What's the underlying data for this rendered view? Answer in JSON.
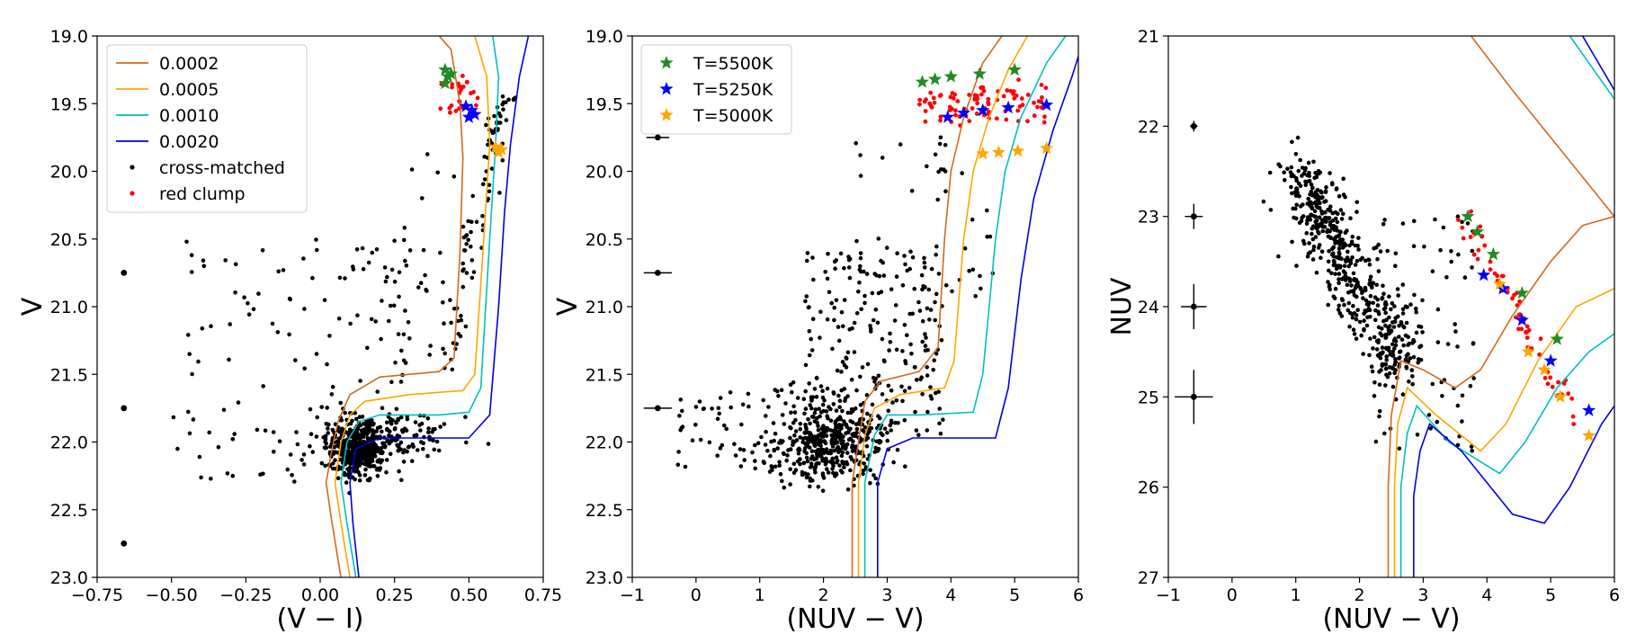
{
  "chart_data": [
    {
      "type": "scatter",
      "xlabel": "(V − I)",
      "ylabel": "V",
      "xlim": [
        -0.75,
        0.75
      ],
      "ylim": [
        23.0,
        19.0
      ],
      "y_inverted": true,
      "grid": false,
      "legend_position": "top-left",
      "xticks": [
        "−0.75",
        "−0.50",
        "−0.25",
        "0.00",
        "0.25",
        "0.50",
        "0.75"
      ],
      "yticks": [
        "19.0",
        "19.5",
        "20.0",
        "20.5",
        "21.0",
        "21.5",
        "22.0",
        "22.5",
        "23.0"
      ],
      "isochrones": [
        {
          "name": "0.0002",
          "color": "#d2691e",
          "points": [
            [
              0.07,
              23.0
            ],
            [
              0.04,
              22.6
            ],
            [
              0.02,
              22.3
            ],
            [
              0.04,
              22.05
            ],
            [
              0.06,
              21.85
            ],
            [
              0.1,
              21.65
            ],
            [
              0.2,
              21.52
            ],
            [
              0.4,
              21.48
            ],
            [
              0.45,
              21.38
            ],
            [
              0.47,
              20.6
            ],
            [
              0.48,
              19.9
            ],
            [
              0.47,
              19.5
            ],
            [
              0.44,
              19.1
            ],
            [
              0.4,
              19.0
            ]
          ]
        },
        {
          "name": "0.0005",
          "color": "#ffa500",
          "points": [
            [
              0.1,
              23.0
            ],
            [
              0.07,
              22.6
            ],
            [
              0.05,
              22.3
            ],
            [
              0.07,
              22.0
            ],
            [
              0.1,
              21.8
            ],
            [
              0.15,
              21.7
            ],
            [
              0.3,
              21.65
            ],
            [
              0.48,
              21.62
            ],
            [
              0.52,
              21.5
            ],
            [
              0.55,
              20.5
            ],
            [
              0.57,
              19.8
            ],
            [
              0.56,
              19.3
            ],
            [
              0.52,
              19.0
            ]
          ]
        },
        {
          "name": "0.0010",
          "color": "#00bfbf",
          "points": [
            [
              0.12,
              23.0
            ],
            [
              0.09,
              22.6
            ],
            [
              0.07,
              22.3
            ],
            [
              0.09,
              22.0
            ],
            [
              0.13,
              21.85
            ],
            [
              0.2,
              21.8
            ],
            [
              0.4,
              21.8
            ],
            [
              0.5,
              21.78
            ],
            [
              0.54,
              21.6
            ],
            [
              0.57,
              20.5
            ],
            [
              0.59,
              19.8
            ],
            [
              0.6,
              19.3
            ],
            [
              0.58,
              19.0
            ]
          ]
        },
        {
          "name": "0.0020",
          "color": "#0000dd",
          "points": [
            [
              0.13,
              23.0
            ],
            [
              0.11,
              22.6
            ],
            [
              0.1,
              22.3
            ],
            [
              0.12,
              22.05
            ],
            [
              0.2,
              21.97
            ],
            [
              0.5,
              21.97
            ],
            [
              0.57,
              21.8
            ],
            [
              0.6,
              21.0
            ],
            [
              0.62,
              20.3
            ],
            [
              0.64,
              19.8
            ],
            [
              0.67,
              19.3
            ],
            [
              0.7,
              19.0
            ]
          ]
        }
      ],
      "legend": [
        "0.0002",
        "0.0005",
        "0.0010",
        "0.0020",
        "cross-matched",
        "red clump"
      ],
      "cross_matched_color": "#000000",
      "red_clump_color": "#ff0000",
      "error_bars": [
        {
          "x": -0.66,
          "y": 20.75,
          "xerr": 0.005,
          "yerr": 0.005
        },
        {
          "x": -0.66,
          "y": 21.75,
          "xerr": 0.005,
          "yerr": 0.005
        },
        {
          "x": -0.66,
          "y": 22.75,
          "xerr": 0.005,
          "yerr": 0.005
        }
      ],
      "star_markers": [
        {
          "name": "T=5500K",
          "color": "#228b22",
          "points": [
            [
              0.42,
              19.25
            ],
            [
              0.43,
              19.3
            ],
            [
              0.42,
              19.35
            ],
            [
              0.44,
              19.28
            ]
          ]
        },
        {
          "name": "T=5250K",
          "color": "#0000ff",
          "points": [
            [
              0.49,
              19.52
            ],
            [
              0.51,
              19.55
            ],
            [
              0.5,
              19.6
            ],
            [
              0.52,
              19.58
            ]
          ]
        },
        {
          "name": "T=5000K",
          "color": "#ffa500",
          "points": [
            [
              0.59,
              19.82
            ],
            [
              0.6,
              19.86
            ],
            [
              0.61,
              19.84
            ]
          ]
        }
      ]
    },
    {
      "type": "scatter",
      "xlabel": "(NUV − V)",
      "ylabel": "V",
      "xlim": [
        -1,
        6
      ],
      "ylim": [
        23.0,
        19.0
      ],
      "y_inverted": true,
      "grid": false,
      "legend_position": "top-left",
      "xticks": [
        "−1",
        "0",
        "1",
        "2",
        "3",
        "4",
        "5",
        "6"
      ],
      "yticks": [
        "19.0",
        "19.5",
        "20.0",
        "20.5",
        "21.0",
        "21.5",
        "22.0",
        "22.5",
        "23.0"
      ],
      "legend": [
        "T=5500K",
        "T=5250K",
        "T=5000K"
      ],
      "isochrones": [
        {
          "name": "0.0002",
          "color": "#d2691e",
          "points": [
            [
              2.45,
              23.0
            ],
            [
              2.45,
              22.3
            ],
            [
              2.55,
              22.0
            ],
            [
              2.65,
              21.7
            ],
            [
              2.9,
              21.55
            ],
            [
              3.5,
              21.48
            ],
            [
              3.8,
              21.3
            ],
            [
              3.9,
              20.5
            ],
            [
              4.0,
              20.0
            ],
            [
              4.2,
              19.6
            ],
            [
              4.5,
              19.2
            ],
            [
              4.8,
              19.0
            ]
          ]
        },
        {
          "name": "0.0005",
          "color": "#ffa500",
          "points": [
            [
              2.55,
              23.0
            ],
            [
              2.55,
              22.3
            ],
            [
              2.65,
              21.95
            ],
            [
              2.8,
              21.75
            ],
            [
              3.2,
              21.65
            ],
            [
              3.9,
              21.6
            ],
            [
              4.05,
              21.4
            ],
            [
              4.2,
              20.5
            ],
            [
              4.35,
              20.0
            ],
            [
              4.6,
              19.6
            ],
            [
              4.9,
              19.25
            ],
            [
              5.2,
              19.0
            ]
          ]
        },
        {
          "name": "0.0010",
          "color": "#00bfbf",
          "points": [
            [
              2.65,
              23.0
            ],
            [
              2.65,
              22.3
            ],
            [
              2.8,
              21.95
            ],
            [
              3.0,
              21.8
            ],
            [
              3.5,
              21.8
            ],
            [
              4.35,
              21.78
            ],
            [
              4.5,
              21.5
            ],
            [
              4.7,
              20.5
            ],
            [
              4.85,
              20.0
            ],
            [
              5.1,
              19.6
            ],
            [
              5.5,
              19.2
            ],
            [
              5.8,
              19.0
            ]
          ]
        },
        {
          "name": "0.0020",
          "color": "#0000dd",
          "points": [
            [
              2.85,
              23.0
            ],
            [
              2.85,
              22.3
            ],
            [
              3.0,
              22.05
            ],
            [
              3.4,
              21.97
            ],
            [
              4.7,
              21.97
            ],
            [
              4.9,
              21.6
            ],
            [
              5.1,
              20.8
            ],
            [
              5.3,
              20.2
            ],
            [
              5.6,
              19.7
            ],
            [
              5.9,
              19.3
            ],
            [
              6.0,
              19.15
            ]
          ]
        }
      ],
      "error_bars": [
        {
          "x": -0.6,
          "y": 19.75,
          "xerr": 0.18,
          "yerr": 0.0
        },
        {
          "x": -0.6,
          "y": 20.75,
          "xerr": 0.22,
          "yerr": 0.0
        },
        {
          "x": -0.6,
          "y": 21.75,
          "xerr": 0.22,
          "yerr": 0.0
        }
      ],
      "star_markers": [
        {
          "name": "T=5500K",
          "color": "#228b22",
          "points": [
            [
              3.55,
              19.34
            ],
            [
              3.75,
              19.32
            ],
            [
              4.0,
              19.3
            ],
            [
              4.45,
              19.28
            ],
            [
              5.0,
              19.25
            ]
          ]
        },
        {
          "name": "T=5250K",
          "color": "#0000ff",
          "points": [
            [
              3.95,
              19.6
            ],
            [
              4.2,
              19.57
            ],
            [
              4.5,
              19.55
            ],
            [
              4.9,
              19.53
            ],
            [
              5.5,
              19.51
            ]
          ]
        },
        {
          "name": "T=5000K",
          "color": "#ffa500",
          "points": [
            [
              4.5,
              19.87
            ],
            [
              4.75,
              19.86
            ],
            [
              5.05,
              19.85
            ],
            [
              5.5,
              19.83
            ]
          ]
        }
      ]
    },
    {
      "type": "scatter",
      "xlabel": "(NUV − V)",
      "ylabel": "NUV",
      "xlim": [
        -1,
        6
      ],
      "ylim": [
        27,
        21
      ],
      "y_inverted": true,
      "grid": false,
      "xticks": [
        "−1",
        "0",
        "1",
        "2",
        "3",
        "4",
        "5",
        "6"
      ],
      "yticks": [
        "21",
        "22",
        "23",
        "24",
        "25",
        "26",
        "27"
      ],
      "isochrones": [
        {
          "name": "0.0002",
          "color": "#d2691e",
          "points": [
            [
              2.45,
              27.0
            ],
            [
              2.45,
              26.0
            ],
            [
              2.5,
              25.2
            ],
            [
              2.65,
              24.6
            ],
            [
              3.0,
              24.7
            ],
            [
              3.5,
              24.9
            ],
            [
              3.9,
              24.7
            ],
            [
              4.4,
              24.1
            ],
            [
              5.0,
              23.5
            ],
            [
              5.5,
              23.1
            ],
            [
              6.0,
              23.0
            ]
          ]
        },
        {
          "name": "0.0005",
          "color": "#ffa500",
          "points": [
            [
              2.55,
              27.0
            ],
            [
              2.55,
              26.0
            ],
            [
              2.6,
              25.3
            ],
            [
              2.75,
              24.9
            ],
            [
              3.2,
              25.2
            ],
            [
              3.9,
              25.6
            ],
            [
              4.3,
              25.3
            ],
            [
              4.8,
              24.6
            ],
            [
              5.4,
              24.0
            ],
            [
              6.0,
              23.8
            ]
          ]
        },
        {
          "name": "0.0010",
          "color": "#00bfbf",
          "points": [
            [
              2.65,
              27.0
            ],
            [
              2.65,
              26.0
            ],
            [
              2.75,
              25.4
            ],
            [
              2.9,
              25.1
            ],
            [
              3.4,
              25.5
            ],
            [
              4.2,
              25.85
            ],
            [
              4.6,
              25.5
            ],
            [
              5.1,
              24.9
            ],
            [
              5.6,
              24.5
            ],
            [
              6.0,
              24.3
            ]
          ]
        },
        {
          "name": "0.0020",
          "color": "#0000dd",
          "points": [
            [
              2.85,
              27.0
            ],
            [
              2.85,
              26.1
            ],
            [
              2.95,
              25.6
            ],
            [
              3.1,
              25.3
            ],
            [
              3.6,
              25.6
            ],
            [
              4.4,
              26.3
            ],
            [
              4.9,
              26.4
            ],
            [
              5.3,
              26.0
            ],
            [
              5.8,
              25.3
            ],
            [
              6.0,
              25.1
            ]
          ]
        },
        {
          "name": "0.0002-giant",
          "color": "#d2691e",
          "points": [
            [
              3.75,
              21.0
            ],
            [
              4.4,
              21.6
            ],
            [
              5.2,
              22.3
            ],
            [
              6.0,
              23.0
            ]
          ]
        },
        {
          "name": "0.0010-giant",
          "color": "#00bfbf",
          "points": [
            [
              5.3,
              21.0
            ],
            [
              5.6,
              21.3
            ],
            [
              6.0,
              21.7
            ]
          ]
        },
        {
          "name": "0.0020-giant",
          "color": "#0000dd",
          "points": [
            [
              5.5,
              21.0
            ],
            [
              5.75,
              21.3
            ],
            [
              6.0,
              21.6
            ]
          ]
        }
      ],
      "error_bars": [
        {
          "x": -0.6,
          "y": 22.0,
          "xerr": 0.06,
          "yerr": 0.06
        },
        {
          "x": -0.6,
          "y": 23.0,
          "xerr": 0.14,
          "yerr": 0.14
        },
        {
          "x": -0.6,
          "y": 24.0,
          "xerr": 0.2,
          "yerr": 0.25
        },
        {
          "x": -0.6,
          "y": 25.0,
          "xerr": 0.3,
          "yerr": 0.3
        }
      ],
      "star_markers": [
        {
          "name": "T=5500K",
          "color": "#228b22",
          "points": [
            [
              3.7,
              23.0
            ],
            [
              3.85,
              23.17
            ],
            [
              4.1,
              23.42
            ],
            [
              4.55,
              23.85
            ],
            [
              5.1,
              24.36
            ]
          ]
        },
        {
          "name": "T=5250K",
          "color": "#0000ff",
          "points": [
            [
              3.95,
              23.65
            ],
            [
              4.25,
              23.8
            ],
            [
              4.55,
              24.15
            ],
            [
              5.0,
              24.6
            ],
            [
              5.6,
              25.15
            ]
          ]
        },
        {
          "name": "T=5000K",
          "color": "#ffa500",
          "points": [
            [
              4.2,
              23.75
            ],
            [
              4.65,
              24.5
            ],
            [
              4.9,
              24.7
            ],
            [
              5.15,
              25.0
            ],
            [
              5.6,
              25.43
            ]
          ]
        }
      ]
    }
  ],
  "legend_items": [
    {
      "label": "0.0002",
      "color": "#d2691e",
      "kind": "line"
    },
    {
      "label": "0.0005",
      "color": "#ffa500",
      "kind": "line"
    },
    {
      "label": "0.0010",
      "color": "#00bfbf",
      "kind": "line"
    },
    {
      "label": "0.0020",
      "color": "#0000dd",
      "kind": "line"
    },
    {
      "label": "cross-matched",
      "color": "#000000",
      "kind": "dot"
    },
    {
      "label": "red clump",
      "color": "#ff0000",
      "kind": "dot"
    }
  ],
  "legend_items_2": [
    {
      "label": "T=5500K",
      "color": "#228b22",
      "kind": "star"
    },
    {
      "label": "T=5250K",
      "color": "#0000ff",
      "kind": "star"
    },
    {
      "label": "T=5000K",
      "color": "#ffa500",
      "kind": "star"
    }
  ]
}
